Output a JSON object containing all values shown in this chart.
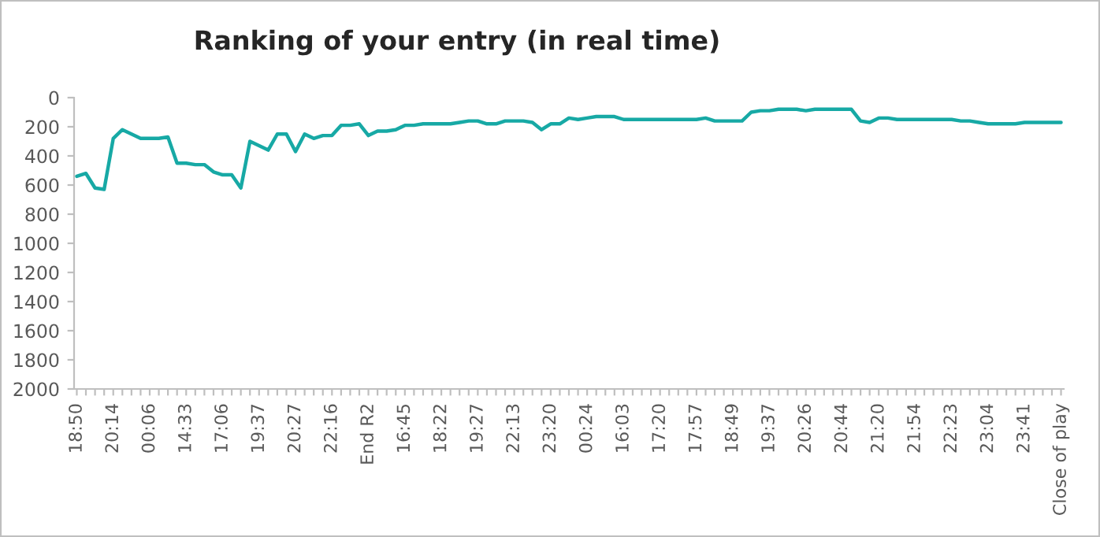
{
  "chart_data": {
    "type": "line",
    "title": "Ranking of your entry (in real time)",
    "categories": [
      "18:50",
      null,
      null,
      null,
      "20:14",
      null,
      null,
      null,
      "00:06",
      null,
      null,
      null,
      "14:33",
      null,
      null,
      null,
      "17:06",
      null,
      null,
      null,
      "19:37",
      null,
      null,
      null,
      "20:27",
      null,
      null,
      null,
      "22:16",
      null,
      null,
      null,
      "End R2",
      null,
      null,
      null,
      "16:45",
      null,
      null,
      null,
      "18:22",
      null,
      null,
      null,
      "19:27",
      null,
      null,
      null,
      "22:13",
      null,
      null,
      null,
      "23:20",
      null,
      null,
      null,
      "00:24",
      null,
      null,
      null,
      "16:03",
      null,
      null,
      null,
      "17:20",
      null,
      null,
      null,
      "17:57",
      null,
      null,
      null,
      "18:49",
      null,
      null,
      null,
      "19:37",
      null,
      null,
      null,
      "20:26",
      null,
      null,
      null,
      "20:44",
      null,
      null,
      null,
      "21:20",
      null,
      null,
      null,
      "21:54",
      null,
      null,
      null,
      "22:23",
      null,
      null,
      null,
      "23:04",
      null,
      null,
      null,
      "23:41",
      null,
      null,
      null,
      "Close of play"
    ],
    "series": [
      {
        "color": "#17a9a5",
        "values": [
          540,
          520,
          620,
          630,
          280,
          220,
          250,
          280,
          280,
          280,
          270,
          450,
          450,
          460,
          460,
          510,
          530,
          530,
          620,
          300,
          330,
          360,
          250,
          250,
          370,
          250,
          280,
          260,
          260,
          190,
          190,
          180,
          260,
          230,
          230,
          220,
          190,
          190,
          180,
          180,
          180,
          180,
          170,
          160,
          160,
          180,
          180,
          160,
          160,
          160,
          170,
          220,
          180,
          180,
          140,
          150,
          140,
          130,
          130,
          130,
          150,
          150,
          150,
          150,
          150,
          150,
          150,
          150,
          150,
          140,
          160,
          160,
          160,
          160,
          100,
          90,
          90,
          80,
          80,
          80,
          90,
          80,
          80,
          80,
          80,
          80,
          160,
          170,
          140,
          140,
          150,
          150,
          150,
          150,
          150,
          150,
          150,
          160,
          160,
          170,
          180,
          180,
          180,
          180,
          170,
          170,
          170,
          170,
          170
        ]
      }
    ],
    "ylim": [
      2000,
      0
    ],
    "yticks": [
      0,
      200,
      400,
      600,
      800,
      1000,
      1200,
      1400,
      1600,
      1800,
      2000
    ],
    "grid": false,
    "marker": "none",
    "line_style": "solid"
  }
}
